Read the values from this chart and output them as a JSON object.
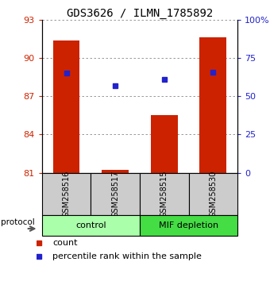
{
  "title": "GDS3626 / ILMN_1785892",
  "samples": [
    "GSM258516",
    "GSM258517",
    "GSM258515",
    "GSM258530"
  ],
  "bar_values": [
    91.4,
    81.2,
    85.5,
    91.6
  ],
  "percentile_values": [
    88.8,
    87.8,
    88.3,
    88.9
  ],
  "bar_color": "#cc2200",
  "percentile_color": "#2222cc",
  "ylim_left": [
    81,
    93
  ],
  "ylim_right": [
    0,
    100
  ],
  "yticks_left": [
    81,
    84,
    87,
    90,
    93
  ],
  "yticks_right": [
    0,
    25,
    50,
    75,
    100
  ],
  "yticklabels_right": [
    "0",
    "25",
    "50",
    "75",
    "100%"
  ],
  "groups": [
    {
      "label": "control",
      "samples": [
        "GSM258516",
        "GSM258517"
      ],
      "color": "#aaffaa"
    },
    {
      "label": "MIF depletion",
      "samples": [
        "GSM258515",
        "GSM258530"
      ],
      "color": "#44dd44"
    }
  ],
  "protocol_label": "protocol",
  "legend_count": "count",
  "legend_percentile": "percentile rank within the sample",
  "bar_width": 0.55,
  "grid_color": "#888888",
  "background_color": "#ffffff",
  "sample_box_color": "#cccccc",
  "title_fontsize": 10,
  "tick_fontsize": 8,
  "axis_left_color": "#cc2200",
  "axis_right_color": "#2222cc",
  "marker_size": 5
}
